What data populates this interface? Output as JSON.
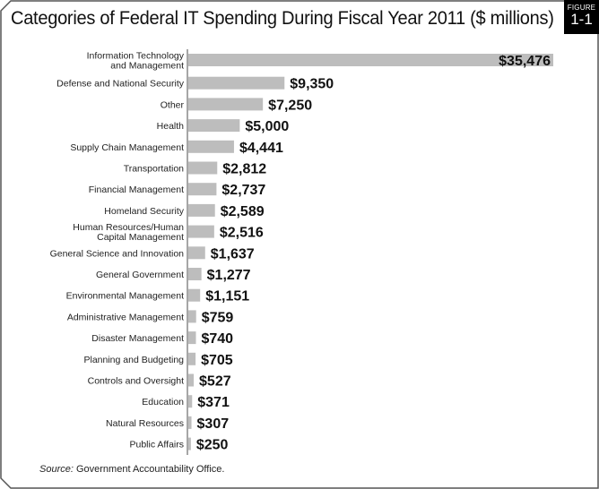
{
  "figure": {
    "label": "FIGURE",
    "number": "1-1"
  },
  "chart_data": {
    "type": "bar",
    "orientation": "horizontal",
    "title": "Categories of Federal IT Spending During Fiscal Year 2011 ($ millions)",
    "categories": [
      "Information Technology\nand Management",
      "Defense and National Security",
      "Other",
      "Health",
      "Supply Chain Management",
      "Transportation",
      "Financial Management",
      "Homeland Security",
      "Human Resources/Human\nCapital Management",
      "General Science and Innovation",
      "General Government",
      "Environmental Management",
      "Administrative Management",
      "Disaster Management",
      "Planning and Budgeting",
      "Controls and Oversight",
      "Education",
      "Natural Resources",
      "Public Affairs"
    ],
    "values": [
      35476,
      9350,
      7250,
      5000,
      4441,
      2812,
      2737,
      2589,
      2516,
      1637,
      1277,
      1151,
      759,
      740,
      705,
      527,
      371,
      307,
      250
    ],
    "data_labels": [
      "$35,476",
      "$9,350",
      "$7,250",
      "$5,000",
      "$4,441",
      "$2,812",
      "$2,737",
      "$2,589",
      "$2,516",
      "$1,637",
      "$1,277",
      "$1,151",
      "$759",
      "$740",
      "$705",
      "$527",
      "$371",
      "$307",
      "$250"
    ],
    "xlabel": "",
    "ylabel": "",
    "grid": false,
    "bar_color": "#bdbdbd"
  },
  "source": {
    "prefix": "Source:",
    "text": " Government Accountability Office."
  }
}
